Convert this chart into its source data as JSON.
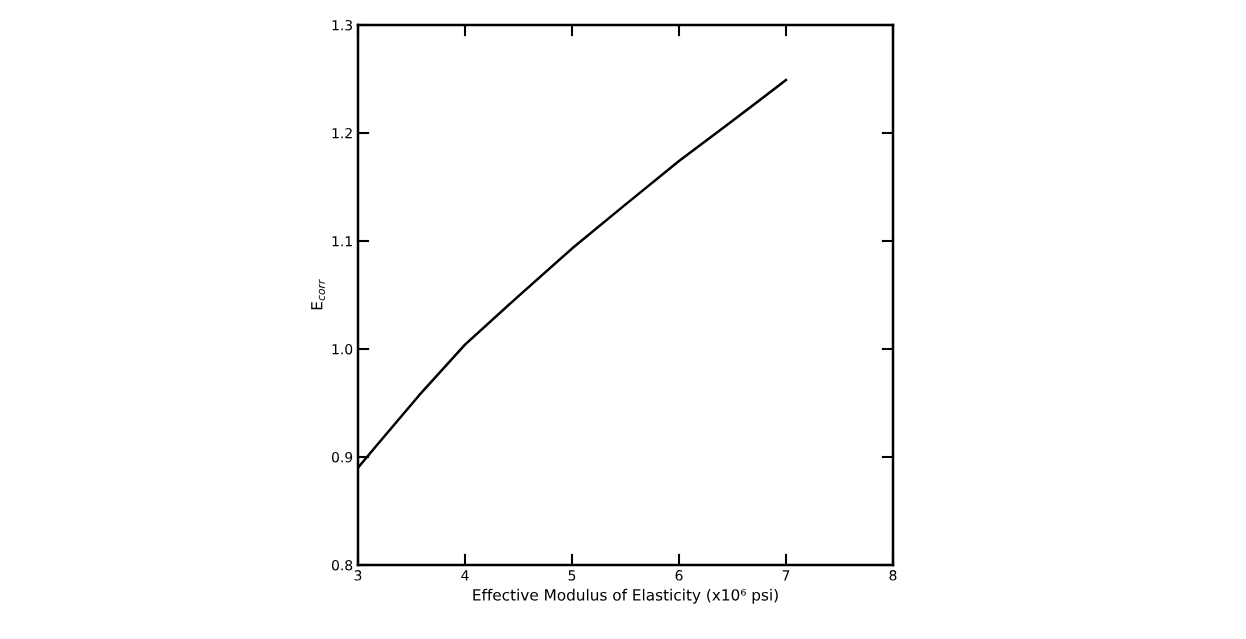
{
  "chart_data": {
    "type": "line",
    "xlabel": "Effective Modulus of Elasticity (x10⁶ psi)",
    "ylabel": "E$_{corr}$",
    "x": [
      3.0,
      3.16,
      3.57,
      4.0,
      4.5,
      5.0,
      5.49,
      6.0,
      6.47,
      7.0
    ],
    "series": [
      {
        "color": "#000000",
        "values": [
          0.89,
          0.909,
          0.957,
          1.004,
          1.049,
          1.093,
          1.133,
          1.174,
          1.209,
          1.249
        ]
      }
    ],
    "xlim": [
      3,
      8
    ],
    "ylim": [
      0.8,
      1.3
    ],
    "xticks": [
      3,
      4,
      5,
      6,
      7,
      8
    ],
    "yticks": [
      0.8,
      0.9,
      {
        "value": 1,
        "label": "1.0"
      },
      1.1,
      1.2,
      1.3
    ],
    "marker": "none",
    "line_style": "solid"
  }
}
